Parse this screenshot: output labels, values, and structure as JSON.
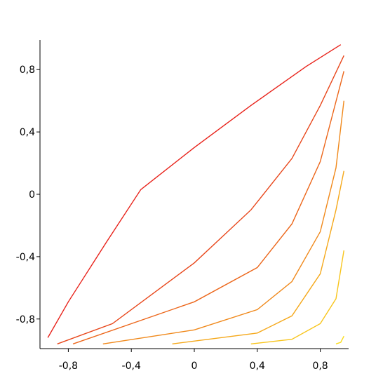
{
  "chart_data": {
    "type": "line",
    "xlim": [
      -0.98,
      0.98
    ],
    "ylim": [
      -0.99,
      0.99
    ],
    "xticks": [
      {
        "value": -0.8,
        "label": "-0,8"
      },
      {
        "value": -0.4,
        "label": "-0,4"
      },
      0,
      {
        "value": 0.4,
        "label": "0,4"
      },
      {
        "value": 0.8,
        "label": "0,8"
      }
    ],
    "yticks": [
      {
        "value": -0.8,
        "label": "-0,8"
      },
      {
        "value": -0.4,
        "label": "-0,4"
      },
      0,
      {
        "value": 0.4,
        "label": "0,4"
      },
      {
        "value": 0.8,
        "label": "0,8"
      }
    ],
    "series": [
      {
        "color": "#e8221a",
        "x": [
          -0.93,
          -0.8,
          -0.56,
          -0.34,
          0,
          0.36,
          0.71,
          0.93
        ],
        "values": [
          -0.92,
          -0.69,
          -0.31,
          0.03,
          0.3,
          0.57,
          0.82,
          0.96
        ]
      },
      {
        "color": "#e8461a",
        "x": [
          -0.87,
          -0.52,
          0,
          0.36,
          0.62,
          0.8,
          0.95
        ],
        "values": [
          -0.96,
          -0.83,
          -0.44,
          -0.1,
          0.23,
          0.57,
          0.89
        ]
      },
      {
        "color": "#ec661a",
        "x": [
          -0.77,
          0,
          0.4,
          0.62,
          0.8,
          0.95
        ],
        "values": [
          -0.96,
          -0.69,
          -0.47,
          -0.19,
          0.21,
          0.79
        ]
      },
      {
        "color": "#f0881a",
        "x": [
          -0.58,
          0,
          0.4,
          0.62,
          0.8,
          0.9,
          0.95
        ],
        "values": [
          -0.96,
          -0.87,
          -0.74,
          -0.56,
          -0.24,
          0.17,
          0.6
        ]
      },
      {
        "color": "#f5a81a",
        "x": [
          -0.14,
          0.4,
          0.62,
          0.8,
          0.9,
          0.95
        ],
        "values": [
          -0.96,
          -0.89,
          -0.78,
          -0.51,
          -0.1,
          0.15
        ]
      },
      {
        "color": "#f8c41a",
        "x": [
          0.36,
          0.62,
          0.8,
          0.9,
          0.95
        ],
        "values": [
          -0.96,
          -0.93,
          -0.83,
          -0.67,
          -0.36
        ]
      },
      {
        "color": "#fadc1a",
        "x": [
          0.9,
          0.93,
          0.95
        ],
        "values": [
          -0.96,
          -0.95,
          -0.91
        ]
      }
    ]
  }
}
